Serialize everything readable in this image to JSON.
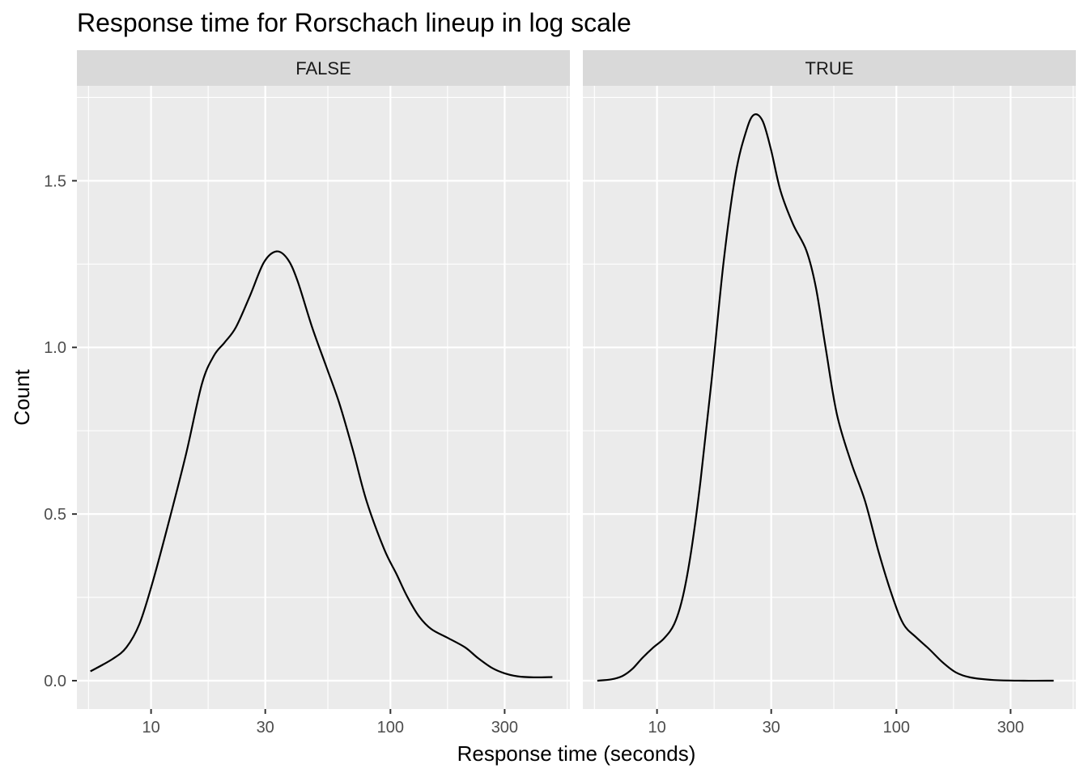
{
  "chart_data": {
    "type": "line",
    "title": "Response time for Rorschach lineup in log scale",
    "xlabel": "Response time (seconds)",
    "ylabel": "Count",
    "x_scale": "log10",
    "xlim": [
      4.9,
      562
    ],
    "ylim": [
      -0.085,
      1.785
    ],
    "x_ticks": [
      10,
      30,
      100,
      300
    ],
    "x_tick_labels": [
      "10",
      "30",
      "100",
      "300"
    ],
    "y_ticks": [
      0.0,
      0.5,
      1.0,
      1.5
    ],
    "y_tick_labels": [
      "0.0",
      "0.5",
      "1.0",
      "1.5"
    ],
    "grid": true,
    "panels": [
      {
        "facet_label": "FALSE",
        "points": [
          [
            5.58,
            0.028
          ],
          [
            6.9,
            0.065
          ],
          [
            7.89,
            0.1
          ],
          [
            8.94,
            0.17
          ],
          [
            10.1,
            0.29
          ],
          [
            11.7,
            0.46
          ],
          [
            14.0,
            0.68
          ],
          [
            16.3,
            0.89
          ],
          [
            18.3,
            0.975
          ],
          [
            20.3,
            1.015
          ],
          [
            22.6,
            1.06
          ],
          [
            25.9,
            1.155
          ],
          [
            29.6,
            1.255
          ],
          [
            33.4,
            1.288
          ],
          [
            37.2,
            1.265
          ],
          [
            40.9,
            1.2
          ],
          [
            47.1,
            1.06
          ],
          [
            54.1,
            0.94
          ],
          [
            61.3,
            0.83
          ],
          [
            69.8,
            0.69
          ],
          [
            79.4,
            0.54
          ],
          [
            94.1,
            0.395
          ],
          [
            106.0,
            0.32
          ],
          [
            117.0,
            0.255
          ],
          [
            131.0,
            0.195
          ],
          [
            148.0,
            0.155
          ],
          [
            174.0,
            0.128
          ],
          [
            205.0,
            0.1
          ],
          [
            232.0,
            0.068
          ],
          [
            266.0,
            0.038
          ],
          [
            300.0,
            0.022
          ],
          [
            340.0,
            0.013
          ],
          [
            397.0,
            0.01
          ],
          [
            475.0,
            0.011
          ]
        ]
      },
      {
        "facet_label": "TRUE",
        "points": [
          [
            5.63,
            0.0
          ],
          [
            6.45,
            0.004
          ],
          [
            7.17,
            0.014
          ],
          [
            7.88,
            0.035
          ],
          [
            8.68,
            0.068
          ],
          [
            9.66,
            0.1
          ],
          [
            10.7,
            0.127
          ],
          [
            11.8,
            0.17
          ],
          [
            12.8,
            0.25
          ],
          [
            13.9,
            0.39
          ],
          [
            15.2,
            0.6
          ],
          [
            16.9,
            0.9
          ],
          [
            19.0,
            1.26
          ],
          [
            21.3,
            1.52
          ],
          [
            23.6,
            1.65
          ],
          [
            25.4,
            1.698
          ],
          [
            27.6,
            1.68
          ],
          [
            29.9,
            1.595
          ],
          [
            32.8,
            1.47
          ],
          [
            37.0,
            1.37
          ],
          [
            42.1,
            1.29
          ],
          [
            46.1,
            1.18
          ],
          [
            50.6,
            1.0
          ],
          [
            56.4,
            0.8
          ],
          [
            64.7,
            0.655
          ],
          [
            73.9,
            0.54
          ],
          [
            84.4,
            0.385
          ],
          [
            96.0,
            0.255
          ],
          [
            107.0,
            0.17
          ],
          [
            121.0,
            0.13
          ],
          [
            137.0,
            0.095
          ],
          [
            156.0,
            0.055
          ],
          [
            177.0,
            0.025
          ],
          [
            203.0,
            0.01
          ],
          [
            255.0,
            0.002
          ],
          [
            340.0,
            0.0
          ],
          [
            454.0,
            0.0
          ]
        ]
      }
    ]
  }
}
